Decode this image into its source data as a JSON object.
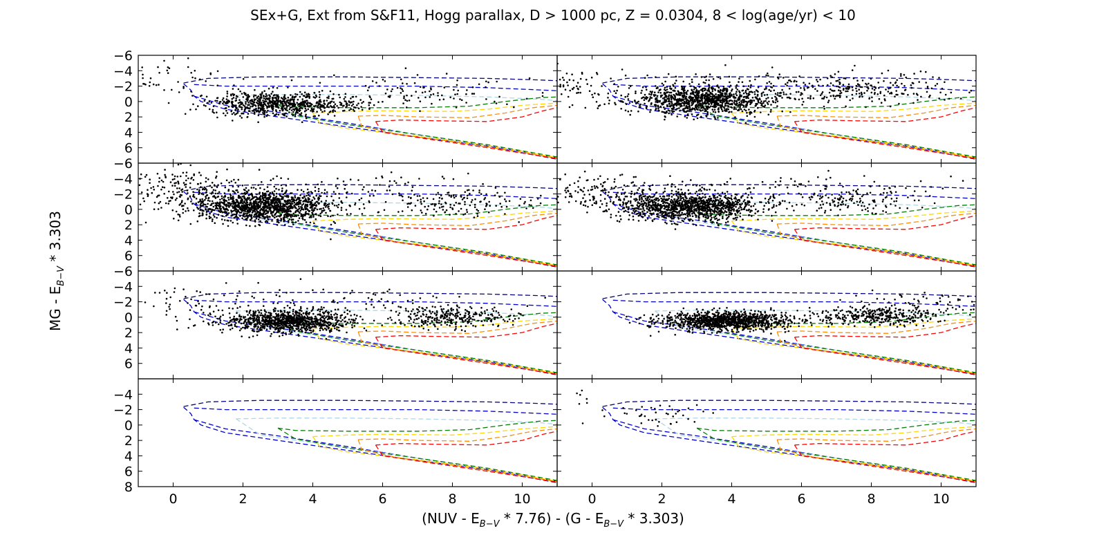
{
  "chart_data": {
    "type": "scatter",
    "title": "SEx+G, Ext from S&F11, Hogg parallax, D > 1000 pc, Z = 0.0304, 8 < log(age/yr) < 10",
    "xlabel": {
      "part1": "(NUV - E",
      "sub1": "B−V",
      "part2": " * 7.76) - (G - E",
      "sub2": "B−V",
      "part3": " * 3.303)"
    },
    "ylabel": {
      "part1": "MG - E",
      "sub1": "B−V",
      "part2": " * 3.303"
    },
    "layout": {
      "rows": 4,
      "cols": 2
    },
    "xlim": [
      -1,
      11
    ],
    "ylim": [
      8,
      -6
    ],
    "x_ticks": [
      0,
      2,
      4,
      6,
      8,
      10
    ],
    "x_tick_labels": [
      "0",
      "2",
      "4",
      "6",
      "8",
      "10"
    ],
    "y_ticks": [
      -6,
      -4,
      -2,
      0,
      2,
      4,
      6,
      8
    ],
    "y_tick_labels_top_panel": [
      "−6",
      "−4",
      "−2",
      "0",
      "2",
      "4",
      "6"
    ],
    "y_tick_labels_middle_panels": [
      "−6",
      "−4",
      "−2",
      "0",
      "2",
      "4",
      "6"
    ],
    "y_tick_labels_bottom_panel": [
      "−4",
      "−2",
      "0",
      "2",
      "4",
      "6",
      "8"
    ],
    "isochrone_colors": [
      "#000080",
      "#0000cd",
      "#add8e6",
      "#008000",
      "#ffd700",
      "#ff8c00",
      "#ff0000"
    ],
    "isochrones": [
      {
        "color": "#000080",
        "points": [
          [
            0.3,
            -2.4
          ],
          [
            1,
            -3.0
          ],
          [
            2.5,
            -3.2
          ],
          [
            5,
            -3.2
          ],
          [
            7,
            -3.1
          ],
          [
            9,
            -3.0
          ],
          [
            10.5,
            -2.8
          ],
          [
            11,
            -2.7
          ]
        ]
      },
      {
        "color": "#0000cd",
        "points": [
          [
            0.3,
            -2.3
          ],
          [
            0.5,
            -1.5
          ],
          [
            0.6,
            -0.7
          ],
          [
            0.8,
            0.0
          ],
          [
            1.5,
            1.0
          ],
          [
            3,
            2.0
          ],
          [
            5,
            3.3
          ],
          [
            7,
            4.6
          ],
          [
            9,
            5.8
          ],
          [
            11,
            7.5
          ]
        ]
      },
      {
        "color": "#0000cd",
        "points": [
          [
            0.6,
            -2.2
          ],
          [
            1.5,
            -2.0
          ],
          [
            3,
            -2.0
          ],
          [
            5,
            -2.0
          ],
          [
            7,
            -2.0
          ],
          [
            9,
            -1.8
          ],
          [
            10.5,
            -1.5
          ],
          [
            11,
            -1.4
          ]
        ]
      },
      {
        "color": "#0000cd",
        "points": [
          [
            0.6,
            -0.7
          ],
          [
            1.5,
            0.5
          ],
          [
            3,
            1.4
          ],
          [
            5,
            2.8
          ],
          [
            7,
            4.3
          ],
          [
            9,
            5.7
          ],
          [
            11,
            7.3
          ]
        ]
      },
      {
        "color": "#add8e6",
        "points": [
          [
            1.8,
            -0.8
          ],
          [
            3,
            -0.9
          ],
          [
            5,
            -0.9
          ],
          [
            7,
            -0.8
          ],
          [
            9,
            -0.6
          ],
          [
            10.5,
            -0.3
          ],
          [
            11,
            -0.1
          ]
        ]
      },
      {
        "color": "#add8e6",
        "points": [
          [
            1.8,
            -0.8
          ],
          [
            2.5,
            1.3
          ],
          [
            4,
            2.3
          ],
          [
            6,
            3.6
          ],
          [
            8,
            5.0
          ],
          [
            10,
            6.4
          ],
          [
            11,
            7.4
          ]
        ]
      },
      {
        "color": "#008000",
        "points": [
          [
            3,
            0.4
          ],
          [
            3.5,
            0.7
          ],
          [
            5,
            0.8
          ],
          [
            7,
            0.8
          ],
          [
            8.5,
            0.6
          ],
          [
            9.5,
            0.0
          ],
          [
            10.5,
            -0.5
          ],
          [
            11,
            -0.6
          ]
        ]
      },
      {
        "color": "#008000",
        "points": [
          [
            3,
            0.4
          ],
          [
            3.5,
            1.8
          ],
          [
            5,
            3.0
          ],
          [
            7,
            4.3
          ],
          [
            9,
            5.6
          ],
          [
            11,
            7.2
          ]
        ]
      },
      {
        "color": "#ffd700",
        "points": [
          [
            4,
            1.5
          ],
          [
            5,
            1.3
          ],
          [
            6,
            1.2
          ],
          [
            8,
            1.3
          ],
          [
            9,
            1.0
          ],
          [
            10,
            0.5
          ],
          [
            11,
            0.2
          ]
        ]
      },
      {
        "color": "#ffd700",
        "points": [
          [
            4,
            1.5
          ],
          [
            4.2,
            2.8
          ],
          [
            5,
            3.5
          ],
          [
            7,
            4.5
          ],
          [
            9,
            5.7
          ],
          [
            11,
            7.3
          ]
        ]
      },
      {
        "color": "#ff8c00",
        "points": [
          [
            5.3,
            1.9
          ],
          [
            6,
            1.8
          ],
          [
            7,
            2.0
          ],
          [
            8.5,
            2.1
          ],
          [
            9.5,
            1.5
          ],
          [
            10.3,
            0.8
          ],
          [
            11,
            0.5
          ]
        ]
      },
      {
        "color": "#ff8c00",
        "points": [
          [
            5.3,
            1.9
          ],
          [
            5.4,
            3.2
          ],
          [
            6.5,
            4.3
          ],
          [
            8,
            5.2
          ],
          [
            10,
            6.6
          ],
          [
            11,
            7.4
          ]
        ]
      },
      {
        "color": "#ff0000",
        "points": [
          [
            5.8,
            2.6
          ],
          [
            6.5,
            2.4
          ],
          [
            7.5,
            2.5
          ],
          [
            9,
            2.6
          ],
          [
            10,
            2.0
          ],
          [
            10.6,
            1.2
          ],
          [
            11,
            0.8
          ]
        ]
      },
      {
        "color": "#ff0000",
        "points": [
          [
            5.8,
            2.6
          ],
          [
            6.0,
            4.0
          ],
          [
            7.5,
            5.0
          ],
          [
            9,
            6.0
          ],
          [
            11,
            7.4
          ]
        ]
      }
    ],
    "panels": [
      {
        "row": 0,
        "col": 0,
        "clusters": [
          {
            "cx": 2.8,
            "cy": 0.3,
            "sx": 0.9,
            "sy": 0.8,
            "n": 600
          },
          {
            "cx": 4.2,
            "cy": 0.3,
            "sx": 0.7,
            "sy": 0.5,
            "n": 120
          },
          {
            "cx": 7.2,
            "cy": -1.0,
            "sx": 1.6,
            "sy": 1.0,
            "n": 110
          },
          {
            "cx": 0.0,
            "cy": -3.0,
            "sx": 1.2,
            "sy": 1.3,
            "n": 50
          }
        ]
      },
      {
        "row": 0,
        "col": 1,
        "clusters": [
          {
            "cx": 3.2,
            "cy": -0.2,
            "sx": 1.0,
            "sy": 0.9,
            "n": 1100
          },
          {
            "cx": 7.5,
            "cy": -1.4,
            "sx": 1.3,
            "sy": 0.9,
            "n": 220
          },
          {
            "cx": -0.5,
            "cy": -2.0,
            "sx": 0.7,
            "sy": 1.2,
            "n": 70
          },
          {
            "cx": 5.0,
            "cy": -2.8,
            "sx": 3.0,
            "sy": 0.8,
            "n": 90
          }
        ]
      },
      {
        "row": 1,
        "col": 0,
        "clusters": [
          {
            "cx": 2.6,
            "cy": -0.4,
            "sx": 1.0,
            "sy": 1.0,
            "n": 1300
          },
          {
            "cx": 8.0,
            "cy": -0.8,
            "sx": 1.2,
            "sy": 0.9,
            "n": 160
          },
          {
            "cx": 0.0,
            "cy": -3.0,
            "sx": 0.9,
            "sy": 1.3,
            "n": 160
          },
          {
            "cx": 4.5,
            "cy": -3.0,
            "sx": 2.5,
            "sy": 1.0,
            "n": 80
          }
        ]
      },
      {
        "row": 1,
        "col": 1,
        "clusters": [
          {
            "cx": 2.8,
            "cy": -0.4,
            "sx": 1.0,
            "sy": 0.9,
            "n": 1200
          },
          {
            "cx": 7.5,
            "cy": -1.2,
            "sx": 0.9,
            "sy": 0.8,
            "n": 150
          },
          {
            "cx": 0.3,
            "cy": -2.2,
            "sx": 0.8,
            "sy": 1.0,
            "n": 120
          },
          {
            "cx": 5.0,
            "cy": -3.0,
            "sx": 2.5,
            "sy": 0.8,
            "n": 70
          }
        ]
      },
      {
        "row": 2,
        "col": 0,
        "clusters": [
          {
            "cx": 3.3,
            "cy": 0.5,
            "sx": 0.9,
            "sy": 0.7,
            "n": 1000
          },
          {
            "cx": 8.0,
            "cy": 0.0,
            "sx": 0.9,
            "sy": 0.7,
            "n": 300
          },
          {
            "cx": 4.5,
            "cy": -2.3,
            "sx": 2.5,
            "sy": 0.9,
            "n": 80
          },
          {
            "cx": 0.5,
            "cy": -1.5,
            "sx": 0.8,
            "sy": 1.2,
            "n": 40
          }
        ]
      },
      {
        "row": 2,
        "col": 1,
        "clusters": [
          {
            "cx": 3.8,
            "cy": 0.5,
            "sx": 0.9,
            "sy": 0.6,
            "n": 1100
          },
          {
            "cx": 8.2,
            "cy": -0.2,
            "sx": 0.9,
            "sy": 0.6,
            "n": 350
          },
          {
            "cx": 9.5,
            "cy": -2.0,
            "sx": 1.0,
            "sy": 0.8,
            "n": 60
          }
        ]
      },
      {
        "row": 3,
        "col": 0,
        "clusters": []
      },
      {
        "row": 3,
        "col": 1,
        "clusters": [
          {
            "cx": 1.8,
            "cy": -1.5,
            "sx": 0.8,
            "sy": 0.8,
            "n": 40
          },
          {
            "cx": -0.5,
            "cy": -3.5,
            "sx": 0.5,
            "sy": 1.0,
            "n": 8
          }
        ]
      }
    ]
  }
}
